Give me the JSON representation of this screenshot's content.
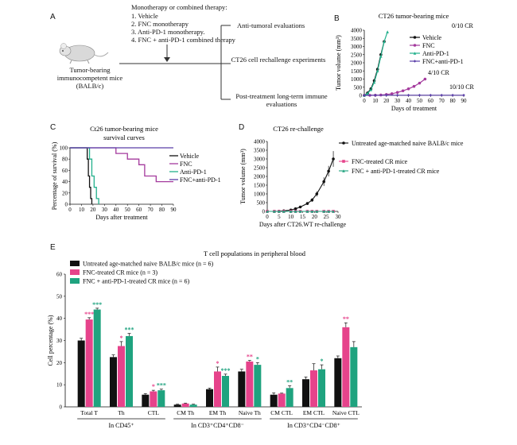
{
  "colors": {
    "vehicle": "#111111",
    "fnc": "#a43a9d",
    "antipd1": "#22b08c",
    "combo": "#5a3ea8",
    "naive": "#111111",
    "fnc_cr": "#e6438b",
    "combo_cr": "#1fa37f",
    "arrow": "#333333"
  },
  "panelA": {
    "letter": "A",
    "therapy_header": "Monotherapy or combined therapy:",
    "therapies": [
      "1. Vehicle",
      "2. FNC monotherapy",
      "3. Anti-PD-1 monotherapy.",
      "4. FNC + anti-PD-1 combined therapy"
    ],
    "mouse_label": [
      "Tumor-bearing",
      "immunocompetent mice",
      "(BALB/c)"
    ],
    "evaluations": [
      "Anti-tumoral evaluations",
      "CT26 cell rechallenge experiments",
      "Post-treatment long-term immune evaluations"
    ],
    "mouse_icon": "mouse-icon"
  },
  "chart_data": [
    {
      "id": "B",
      "type": "line",
      "title": "CT26 tumor-bearing mice",
      "xlabel": "Days of treatment",
      "ylabel": "Tumor volume (mm³)",
      "xlim": [
        0,
        90
      ],
      "ylim": [
        0,
        4000
      ],
      "xticks": [
        0,
        10,
        20,
        30,
        40,
        50,
        60,
        70,
        80,
        90
      ],
      "yticks": [
        0,
        500,
        1000,
        1500,
        2000,
        2500,
        3000,
        3500,
        4000
      ],
      "legend": [
        "Vehicle",
        "FNC",
        "Anti-PD-1",
        "FNC+anti-PD-1"
      ],
      "annotations": [
        "0/10 CR",
        "4/10 CR",
        "10/10 CR"
      ],
      "series": [
        {
          "name": "Vehicle",
          "color_key": "vehicle",
          "marker": "circle",
          "x": [
            0,
            3,
            6,
            9,
            12,
            15,
            18
          ],
          "y": [
            0,
            150,
            400,
            900,
            1600,
            2500,
            3300
          ]
        },
        {
          "name": "FNC",
          "color_key": "fnc",
          "marker": "circle",
          "x": [
            0,
            5,
            10,
            15,
            20,
            25,
            30,
            35,
            40,
            45,
            50,
            55
          ],
          "y": [
            0,
            5,
            10,
            20,
            50,
            100,
            180,
            280,
            400,
            550,
            750,
            1000
          ]
        },
        {
          "name": "Anti-PD-1",
          "color_key": "antipd1",
          "marker": "triangle",
          "x": [
            0,
            3,
            6,
            9,
            12,
            15,
            18,
            21
          ],
          "y": [
            0,
            120,
            350,
            800,
            1500,
            2400,
            3300,
            3900
          ]
        },
        {
          "name": "FNC+anti-PD-1",
          "color_key": "combo",
          "marker": "diamond",
          "x": [
            0,
            10,
            20,
            30,
            40,
            50,
            60,
            70,
            80,
            90
          ],
          "y": [
            0,
            5,
            10,
            10,
            10,
            10,
            10,
            10,
            10,
            10
          ]
        }
      ]
    },
    {
      "id": "C",
      "type": "line",
      "title": "Ct26 tumor-bearing mice",
      "subtitle": "survival curves",
      "xlabel": "Days after treatment",
      "ylabel": "Percentage of survival (%)",
      "xlim": [
        0,
        90
      ],
      "ylim": [
        0,
        100
      ],
      "xticks": [
        0,
        10,
        20,
        30,
        40,
        50,
        60,
        70,
        80,
        90
      ],
      "yticks": [
        0,
        20,
        40,
        60,
        80,
        100
      ],
      "legend": [
        "Vehicle",
        "FNC",
        "Anti-PD-1",
        "FNC+anti-PD-1"
      ],
      "series": [
        {
          "name": "Vehicle",
          "color_key": "vehicle",
          "x": [
            0,
            14,
            15,
            16,
            17,
            18,
            19
          ],
          "y": [
            100,
            100,
            80,
            50,
            30,
            10,
            0
          ]
        },
        {
          "name": "FNC",
          "color_key": "fnc",
          "x": [
            0,
            35,
            40,
            45,
            50,
            55,
            60,
            65,
            75,
            90
          ],
          "y": [
            100,
            100,
            90,
            90,
            80,
            80,
            70,
            50,
            40,
            40
          ]
        },
        {
          "name": "Anti-PD-1",
          "color_key": "antipd1",
          "x": [
            0,
            15,
            17,
            19,
            21,
            23,
            25
          ],
          "y": [
            100,
            100,
            80,
            50,
            30,
            10,
            0
          ]
        },
        {
          "name": "FNC+anti-PD-1",
          "color_key": "combo",
          "x": [
            0,
            90
          ],
          "y": [
            100,
            100
          ]
        }
      ]
    },
    {
      "id": "D",
      "type": "line",
      "title": "CT26 re-challenge",
      "xlabel": "Days after CT26.WT re-challenge",
      "ylabel": "Tumor volume (mm³)",
      "xlim": [
        0,
        30
      ],
      "ylim": [
        0,
        4000
      ],
      "xticks": [
        0,
        5,
        10,
        15,
        20,
        25,
        30
      ],
      "yticks": [
        0,
        500,
        1000,
        1500,
        2000,
        2500,
        3000,
        3500,
        4000
      ],
      "legend": [
        "Untreated age-matched naive BALB/c mice",
        "FNC-treated CR mice",
        "FNC + anti-PD-1-treated CR mice"
      ],
      "series": [
        {
          "name": "Untreated age-matched naive BALB/c mice",
          "color_key": "naive",
          "marker": "circle",
          "x": [
            0,
            3,
            5,
            7,
            10,
            12,
            14,
            17,
            19,
            21,
            24,
            26,
            28
          ],
          "y": [
            0,
            0,
            10,
            30,
            80,
            150,
            250,
            450,
            650,
            1000,
            1700,
            2300,
            3000
          ],
          "err": [
            0,
            0,
            5,
            10,
            20,
            40,
            60,
            80,
            100,
            150,
            250,
            300,
            450
          ]
        },
        {
          "name": "FNC-treated CR mice",
          "color_key": "fnc_cr",
          "marker": "square",
          "x": [
            0,
            3,
            5,
            7,
            10,
            12,
            14,
            17,
            19,
            21,
            24,
            26,
            28
          ],
          "y": [
            0,
            0,
            0,
            0,
            0,
            0,
            0,
            0,
            0,
            0,
            0,
            0,
            0
          ]
        },
        {
          "name": "FNC + anti-PD-1-treated CR mice",
          "color_key": "combo_cr",
          "marker": "triangle",
          "x": [
            0,
            3,
            5,
            7,
            10,
            12,
            14,
            17,
            19,
            21,
            24,
            26,
            28
          ],
          "y": [
            0,
            0,
            0,
            0,
            0,
            0,
            0,
            0,
            0,
            0,
            0,
            0,
            0
          ]
        }
      ]
    },
    {
      "id": "E",
      "type": "bar",
      "title": "T cell populations in peripheral blood",
      "ylabel": "Cell percentage (%)",
      "ylim": [
        0,
        60
      ],
      "yticks": [
        0,
        10,
        20,
        30,
        40,
        50,
        60
      ],
      "legend": [
        "Untreated age-matched naive BALB/c mice (n = 6)",
        "FNC-treated CR mice (n = 3)",
        "FNC + anti-PD-1-treated CR mice (n = 6)"
      ],
      "categories": [
        "Total T",
        "Th",
        "CTL",
        "CM Th",
        "EM Th",
        "Naive Th",
        "CM CTL",
        "EM CTL",
        "Naive CTL"
      ],
      "groups": [
        {
          "label": "In CD45⁺",
          "categories": [
            "Total T",
            "Th",
            "CTL"
          ]
        },
        {
          "label": "In CD3⁺CD4⁺CD8⁻",
          "categories": [
            "CM Th",
            "EM Th",
            "Naive Th"
          ]
        },
        {
          "label": "In CD3⁺CD4⁻CD8⁺",
          "categories": [
            "CM CTL",
            "EM CTL",
            "Naive CTL"
          ]
        }
      ],
      "series": [
        {
          "name": "Untreated age-matched naive BALB/c mice",
          "color_key": "naive",
          "values": [
            30,
            22.5,
            5.5,
            1,
            8,
            16,
            5.5,
            12.5,
            22
          ],
          "err": [
            1,
            1,
            0.5,
            0.2,
            0.5,
            1,
            0.8,
            1,
            1
          ],
          "sig": [
            "",
            "",
            "",
            "",
            "",
            "",
            "",
            "",
            ""
          ]
        },
        {
          "name": "FNC-treated CR mice",
          "color_key": "fnc_cr",
          "values": [
            39.5,
            27.5,
            7,
            1.5,
            16,
            20.5,
            6,
            16.5,
            36
          ],
          "err": [
            0.8,
            2,
            0.5,
            0.2,
            2,
            0.5,
            0.2,
            3,
            2
          ],
          "sig": [
            "***",
            "*",
            "*",
            "",
            "*",
            "**",
            "",
            "",
            "**"
          ]
        },
        {
          "name": "FNC + anti-PD-1-treated CR mice",
          "color_key": "combo_cr",
          "values": [
            44,
            32,
            7.5,
            1,
            14,
            19,
            8.5,
            17,
            27
          ],
          "err": [
            0.6,
            1.2,
            0.5,
            0.2,
            0.8,
            1,
            1,
            2,
            2.5
          ],
          "sig": [
            "***",
            "***",
            "***",
            "",
            "***",
            "*",
            "**",
            "*",
            ""
          ]
        }
      ]
    }
  ]
}
